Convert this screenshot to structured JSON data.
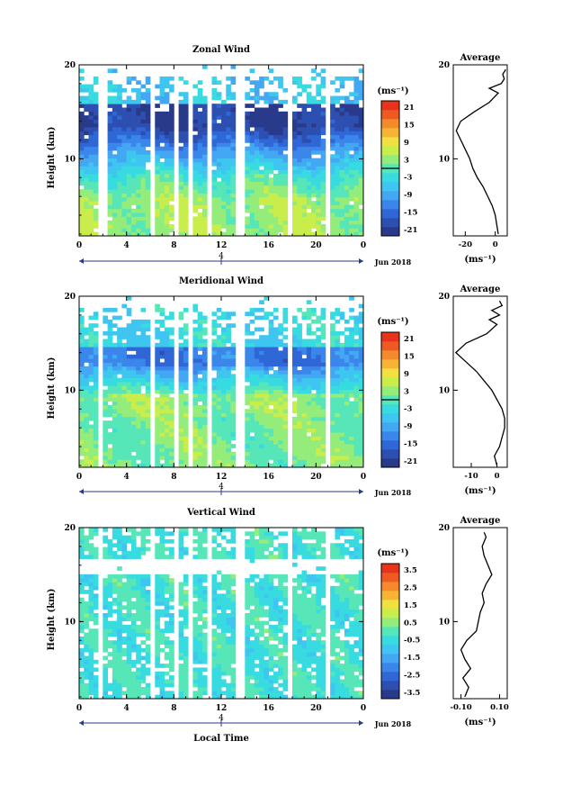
{
  "figure": {
    "x_axis_label": "Local Time",
    "date_label": "Jun 2018",
    "day_marker": "4"
  },
  "colors": {
    "blank": "#ffffff",
    "axis": "#000000",
    "zonal_scale": [
      "#2a3a8a",
      "#2c4fb0",
      "#2f67d6",
      "#3b86ea",
      "#44a7f3",
      "#3fc6f0",
      "#37dbe0",
      "#56e6b8",
      "#94ec7a",
      "#c9ee4c",
      "#f0e040",
      "#f7b434",
      "#f58a2c",
      "#ef5a22",
      "#e8321a"
    ],
    "vertical_scale": [
      "#2a3a8a",
      "#2c4fb0",
      "#2f67d6",
      "#3b86ea",
      "#44a7f3",
      "#3fc6f0",
      "#37dbe0",
      "#56e6b8",
      "#94ec7a",
      "#c9ee4c",
      "#f0e040",
      "#f7b434",
      "#f58a2c",
      "#ef5a22",
      "#e8321a"
    ]
  },
  "chart_data": [
    {
      "type": "heatmap",
      "title": "Zonal Wind",
      "ylabel": "Height (km)",
      "xlabel": "",
      "x_ticks": [
        "0",
        "4",
        "8",
        "12",
        "16",
        "20",
        "0"
      ],
      "y_ticks": [
        "10",
        "20"
      ],
      "xlim": [
        0,
        24
      ],
      "ylim": [
        1.8,
        20
      ],
      "colorbar_unit": "(ms⁻¹)",
      "colorbar_ticks": [
        "21",
        "15",
        "9",
        "3",
        "-3",
        "-9",
        "-15",
        "-21"
      ],
      "colorbar_range": [
        -24,
        24
      ],
      "gap_times": [
        1.8,
        2.2,
        5.9,
        6.3,
        8.0,
        8.3,
        9.1,
        9.5,
        10.7,
        11.0,
        13.4,
        13.8,
        17.7,
        18.1,
        20.8,
        21.1
      ],
      "average": {
        "title": "Average",
        "xlabel": "(ms⁻¹)",
        "x_ticks": [
          "-20",
          "0"
        ],
        "x_tick_values": [
          -20,
          0
        ],
        "xlim": [
          -28,
          8
        ],
        "heights": [
          2,
          3,
          4,
          5,
          6,
          7,
          8,
          9,
          10,
          11,
          12,
          13,
          14,
          15,
          16,
          17,
          17.5,
          18,
          18.5,
          19,
          19.5
        ],
        "values": [
          2,
          1,
          0,
          -2,
          -5,
          -8,
          -12,
          -15,
          -17,
          -20,
          -23,
          -26,
          -23,
          -14,
          -4,
          2,
          -4,
          4,
          6,
          5,
          7
        ]
      }
    },
    {
      "type": "heatmap",
      "title": "Meridional Wind",
      "ylabel": "Height (km)",
      "xlabel": "",
      "x_ticks": [
        "0",
        "4",
        "8",
        "12",
        "16",
        "20",
        "0"
      ],
      "y_ticks": [
        "10",
        "20"
      ],
      "xlim": [
        0,
        24
      ],
      "ylim": [
        1.8,
        20
      ],
      "colorbar_unit": "(ms⁻¹)",
      "colorbar_ticks": [
        "21",
        "15",
        "9",
        "3",
        "-3",
        "-9",
        "-15",
        "-21"
      ],
      "colorbar_range": [
        -24,
        24
      ],
      "gap_times": [
        1.7,
        2.1,
        5.9,
        6.3,
        8.0,
        8.3,
        9.1,
        9.5,
        10.7,
        11.0,
        13.4,
        13.8,
        17.7,
        18.1,
        20.8,
        21.1
      ],
      "average": {
        "title": "Average",
        "xlabel": "(ms⁻¹)",
        "x_ticks": [
          "-10",
          "0"
        ],
        "x_tick_values": [
          -10,
          0
        ],
        "xlim": [
          -17,
          4
        ],
        "heights": [
          2,
          3,
          4,
          5,
          6,
          7,
          8,
          9,
          10,
          11,
          12,
          13,
          14,
          15,
          16,
          17,
          17.5,
          18,
          18.5,
          19,
          19.5
        ],
        "values": [
          0,
          -1,
          1,
          2,
          3,
          3,
          2,
          0,
          -2,
          -5,
          -8,
          -12,
          -16,
          -12,
          -4,
          0,
          -3,
          1,
          -2,
          2,
          1
        ]
      }
    },
    {
      "type": "heatmap",
      "title": "Vertical Wind",
      "ylabel": "Height (km)",
      "xlabel": "Local Time",
      "x_ticks": [
        "0",
        "4",
        "8",
        "12",
        "16",
        "20",
        "0"
      ],
      "y_ticks": [
        "10",
        "20"
      ],
      "xlim": [
        0,
        24
      ],
      "ylim": [
        1.8,
        20
      ],
      "colorbar_unit": "(ms⁻¹)",
      "colorbar_ticks": [
        "3.5",
        "2.5",
        "1.5",
        "0.5",
        "-0.5",
        "-1.5",
        "-2.5",
        "-3.5"
      ],
      "colorbar_range": [
        -4,
        4
      ],
      "gap_times": [
        1.7,
        2.1,
        5.9,
        6.3,
        8.0,
        8.3,
        9.1,
        9.5,
        10.7,
        11.0,
        13.4,
        13.8,
        17.7,
        18.1,
        20.8,
        21.1
      ],
      "average": {
        "title": "Average",
        "xlabel": "(ms⁻¹)",
        "x_ticks": [
          "-0.10",
          "0.10"
        ],
        "x_tick_values": [
          -0.1,
          0.1
        ],
        "xlim": [
          -0.14,
          0.14
        ],
        "heights": [
          2,
          3,
          4,
          5,
          6,
          7,
          8,
          9,
          10,
          11,
          12,
          13,
          14,
          15,
          16,
          17,
          18,
          19,
          19.5
        ],
        "values": [
          -0.08,
          -0.06,
          -0.09,
          -0.05,
          -0.08,
          -0.1,
          -0.07,
          -0.02,
          -0.01,
          0.0,
          0.02,
          0.01,
          0.03,
          0.06,
          0.04,
          0.02,
          0.01,
          0.03,
          0.02
        ]
      }
    }
  ]
}
